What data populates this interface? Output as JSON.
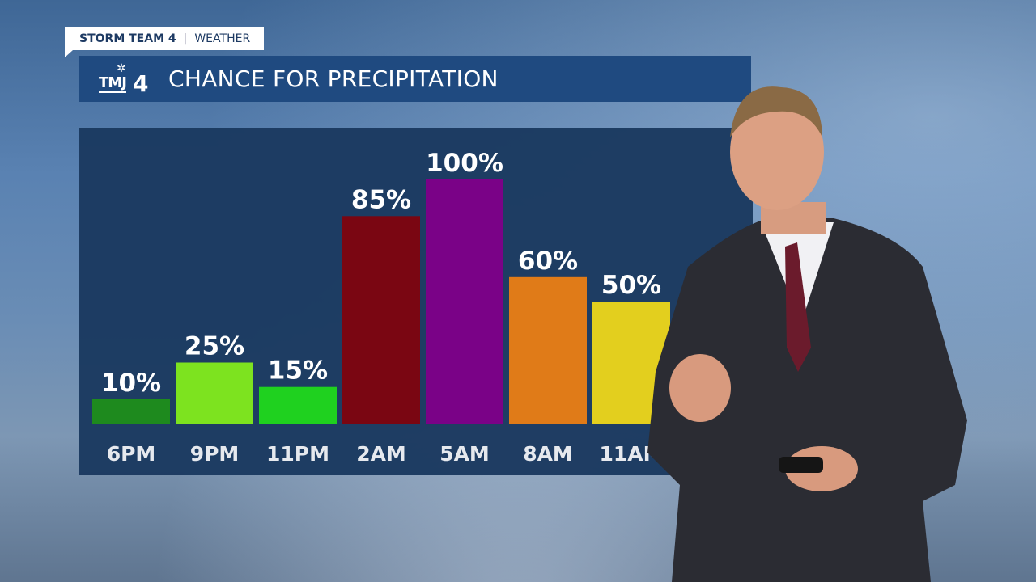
{
  "header": {
    "brand": "STORM TEAM 4",
    "section": "WEATHER",
    "logo": "TMJ4",
    "title": "CHANCE FOR PRECIPITATION"
  },
  "chart_data": {
    "type": "bar",
    "title": "CHANCE FOR PRECIPITATION",
    "categories": [
      "6PM",
      "9PM",
      "11PM",
      "2AM",
      "5AM",
      "8AM",
      "11AM"
    ],
    "values": [
      10,
      25,
      15,
      85,
      100,
      60,
      50
    ],
    "labels": [
      "10%",
      "25%",
      "15%",
      "85%",
      "100%",
      "60%",
      "50%"
    ],
    "colors": [
      "#1e8a1e",
      "#7de31f",
      "#1fd11f",
      "#7a0612",
      "#7a0287",
      "#e07b18",
      "#e3cf1e"
    ],
    "ylim": [
      0,
      100
    ],
    "grid": false
  }
}
